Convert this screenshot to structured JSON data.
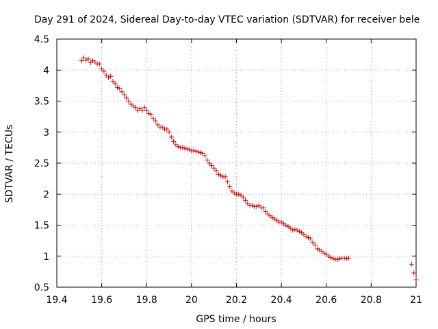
{
  "chart_data": {
    "type": "scatter",
    "title": "Day 291 of 2024, Sidereal Day-to-day VTEC variation (SDTVAR) for receiver bele",
    "xlabel": "GPS time / hours",
    "ylabel": "SDTVAR / TECUs",
    "xlim": [
      19.4,
      21.0
    ],
    "ylim": [
      0.5,
      4.5
    ],
    "x_ticks": [
      "19.4",
      "19.6",
      "19.8",
      "20",
      "20.2",
      "20.4",
      "20.6",
      "20.8",
      "21"
    ],
    "y_ticks": [
      "0.5",
      "1",
      "1.5",
      "2",
      "2.5",
      "3",
      "3.5",
      "4",
      "4.5"
    ],
    "grid": true,
    "marker": "+",
    "marker_color": "#cc0000",
    "series": [
      {
        "name": "SDTVAR",
        "x": [
          19.51,
          19.52,
          19.53,
          19.54,
          19.55,
          19.56,
          19.57,
          19.58,
          19.59,
          19.6,
          19.61,
          19.62,
          19.63,
          19.64,
          19.65,
          19.66,
          19.67,
          19.68,
          19.69,
          19.7,
          19.71,
          19.72,
          19.73,
          19.74,
          19.75,
          19.76,
          19.77,
          19.78,
          19.79,
          19.8,
          19.81,
          19.82,
          19.83,
          19.84,
          19.85,
          19.86,
          19.87,
          19.88,
          19.89,
          19.9,
          19.91,
          19.92,
          19.93,
          19.94,
          19.95,
          19.96,
          19.97,
          19.98,
          19.99,
          20.0,
          20.01,
          20.02,
          20.03,
          20.04,
          20.05,
          20.06,
          20.07,
          20.08,
          20.09,
          20.1,
          20.11,
          20.12,
          20.13,
          20.14,
          20.15,
          20.16,
          20.17,
          20.18,
          20.19,
          20.2,
          20.21,
          20.22,
          20.23,
          20.24,
          20.25,
          20.26,
          20.27,
          20.28,
          20.29,
          20.3,
          20.31,
          20.32,
          20.33,
          20.34,
          20.35,
          20.36,
          20.37,
          20.38,
          20.39,
          20.4,
          20.41,
          20.42,
          20.43,
          20.44,
          20.45,
          20.46,
          20.47,
          20.48,
          20.49,
          20.5,
          20.51,
          20.52,
          20.53,
          20.54,
          20.55,
          20.56,
          20.57,
          20.58,
          20.59,
          20.6,
          20.61,
          20.62,
          20.63,
          20.64,
          20.65,
          20.66,
          20.67,
          20.68,
          20.69,
          20.7,
          20.98,
          20.99,
          21.0
        ],
        "y": [
          4.15,
          4.2,
          4.16,
          4.18,
          4.12,
          4.15,
          4.13,
          4.1,
          4.1,
          4.02,
          3.98,
          3.92,
          3.88,
          3.9,
          3.82,
          3.78,
          3.72,
          3.7,
          3.65,
          3.6,
          3.55,
          3.5,
          3.45,
          3.42,
          3.4,
          3.35,
          3.38,
          3.35,
          3.4,
          3.35,
          3.3,
          3.28,
          3.22,
          3.18,
          3.12,
          3.08,
          3.08,
          3.05,
          3.05,
          3.0,
          2.92,
          2.85,
          2.8,
          2.77,
          2.75,
          2.75,
          2.74,
          2.73,
          2.72,
          2.7,
          2.7,
          2.69,
          2.68,
          2.67,
          2.66,
          2.62,
          2.55,
          2.5,
          2.46,
          2.42,
          2.38,
          2.32,
          2.3,
          2.28,
          2.28,
          2.2,
          2.12,
          2.05,
          2.02,
          2.0,
          2.0,
          1.98,
          1.95,
          1.9,
          1.85,
          1.82,
          1.82,
          1.8,
          1.8,
          1.82,
          1.78,
          1.78,
          1.72,
          1.68,
          1.65,
          1.62,
          1.6,
          1.58,
          1.55,
          1.55,
          1.52,
          1.5,
          1.48,
          1.45,
          1.42,
          1.43,
          1.42,
          1.4,
          1.38,
          1.35,
          1.32,
          1.3,
          1.28,
          1.22,
          1.18,
          1.12,
          1.1,
          1.08,
          1.05,
          1.03,
          1.0,
          0.98,
          0.96,
          0.95,
          0.95,
          0.96,
          0.97,
          0.97,
          0.96,
          0.97,
          0.87,
          0.73,
          0.62
        ]
      }
    ]
  }
}
